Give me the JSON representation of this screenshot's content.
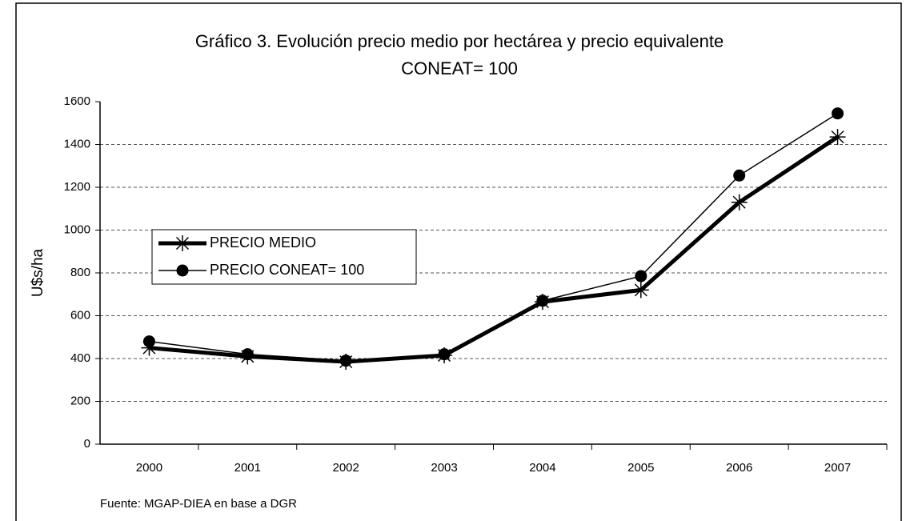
{
  "chart_data": {
    "type": "line",
    "title": [
      "Gráfico 3. Evolución precio medio por hectárea y precio equivalente",
      "CONEAT= 100"
    ],
    "y_label": "U$s/ha",
    "source": "Fuente: MGAP-DIEA en base a DGR",
    "categories": [
      "2000",
      "2001",
      "2002",
      "2003",
      "2004",
      "2005",
      "2006",
      "2007"
    ],
    "series": [
      {
        "name": "PRECIO MEDIO",
        "color": "#000000",
        "marker": "star",
        "line_width": 5,
        "values": [
          450,
          410,
          385,
          415,
          665,
          720,
          1130,
          1435
        ]
      },
      {
        "name": "PRECIO CONEAT= 100",
        "color": "#000000",
        "marker": "circle",
        "line_width": 1.5,
        "values": [
          480,
          420,
          390,
          420,
          670,
          785,
          1255,
          1545
        ]
      }
    ],
    "ylim": [
      0,
      1600
    ],
    "yticks": [
      0,
      200,
      400,
      600,
      800,
      1000,
      1200,
      1400,
      1600
    ],
    "grid": true,
    "legend": "left"
  }
}
